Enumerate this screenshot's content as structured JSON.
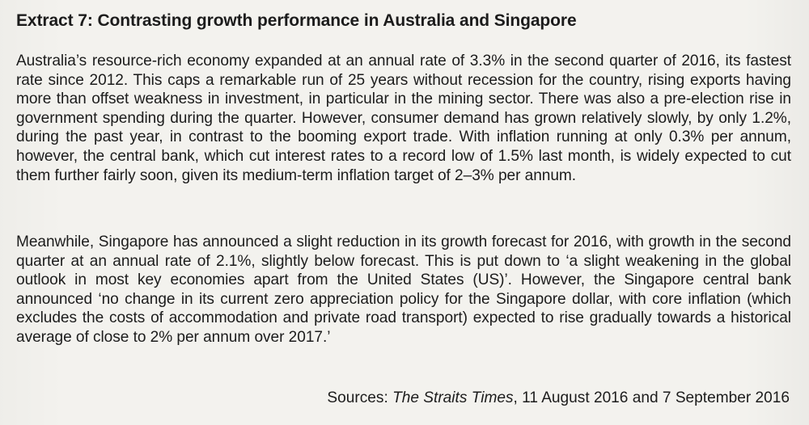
{
  "extract": {
    "title": "Extract 7: Contrasting growth performance in Australia and Singapore",
    "paragraphs": [
      "Australia’s resource-rich economy expanded at an annual rate of 3.3% in the second quarter of 2016, its fastest rate since 2012. This caps a remarkable run of 25 years without recession for the country, rising exports having more than offset weakness in investment, in particular in the mining sector. There was also a pre-election rise in government spending during the quarter. However, consumer demand has grown relatively slowly, by only 1.2%, during the past year, in contrast to the booming export trade. With inflation running at only 0.3% per annum, however, the central bank, which cut interest rates to a record low of 1.5% last month, is widely expected to cut them further fairly soon, given its medium-term inflation target of 2–3% per annum.",
      "Meanwhile, Singapore has announced a slight reduction in its growth forecast for 2016, with growth in the second quarter at an annual rate of 2.1%, slightly below forecast. This is put down to ‘a slight weakening in the global outlook in most key economies apart from the United States (US)’. However, the Singapore central bank announced ‘no change in its current zero appreciation policy for the Singapore dollar, with core inflation (which excludes the costs of accommodation and private road transport) expected to rise gradually towards a historical average of close to 2% per annum over 2017.’"
    ],
    "sources": {
      "prefix": "Sources: ",
      "publication": "The Straits Times",
      "suffix": ", 11 August 2016 and 7 September 2016"
    }
  }
}
